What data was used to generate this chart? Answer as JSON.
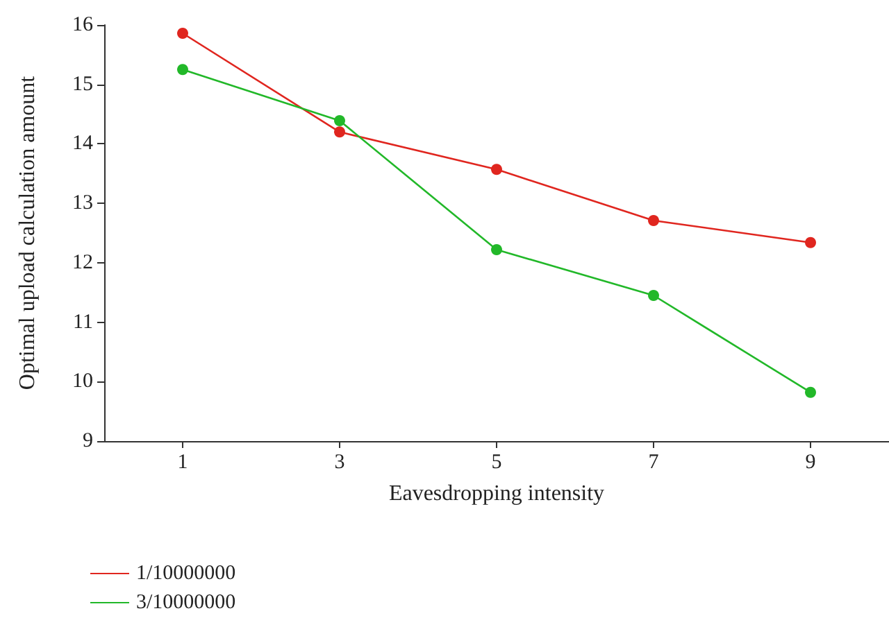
{
  "chart_data": {
    "type": "line",
    "xlabel": "Eavesdropping intensity",
    "ylabel": "Optimal upload calculation amount",
    "categories": [
      "1",
      "3",
      "5",
      "7",
      "9"
    ],
    "series": [
      {
        "name": "1/10000000",
        "color": "#e0261f",
        "values": [
          15.86,
          14.2,
          13.57,
          12.71,
          12.34
        ]
      },
      {
        "name": "3/10000000",
        "color": "#22b829",
        "values": [
          15.25,
          14.39,
          12.22,
          11.45,
          9.82
        ]
      }
    ],
    "ylim": [
      9,
      16
    ],
    "yticks": [
      9,
      10,
      11,
      12,
      13,
      14,
      15,
      16
    ],
    "grid": false,
    "legend": "bottom left",
    "marker": "circle",
    "line_style": "solid"
  }
}
